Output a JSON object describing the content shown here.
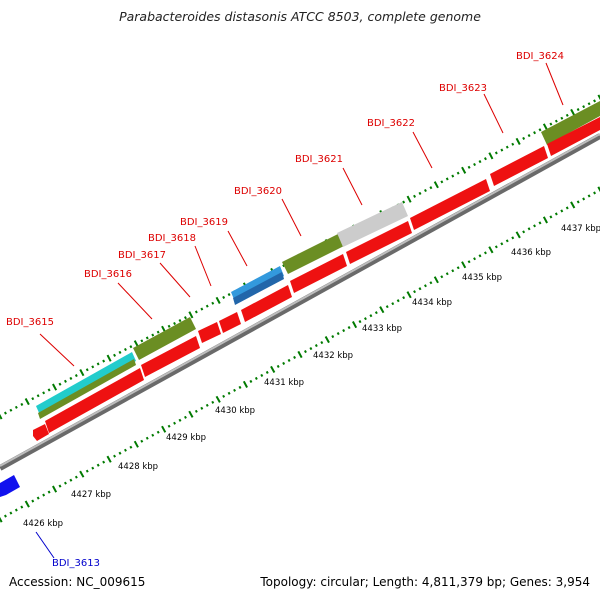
{
  "title": "Parabacteroides distasonis ATCC 8503, complete genome",
  "footer": {
    "accession": "Accession: NC_009615",
    "summary": "Topology: circular; Length: 4,811,379 bp; Genes: 3,954"
  },
  "colors": {
    "cds": "#ee1111",
    "cds_blue": "#1111ee",
    "backbone": "#9a9a9a",
    "tick": "#007a00",
    "feature_olive": "#6b8e23",
    "feature_cyan": "#22cccc",
    "feature_blue": "#3388cc",
    "feature_grey": "#cccccc",
    "label_red": "#dd0000",
    "label_blue": "#0000cc"
  },
  "scale_ticks": [
    "4426 kbp",
    "4427 kbp",
    "4428 kbp",
    "4429 kbp",
    "4430 kbp",
    "4431 kbp",
    "4432 kbp",
    "4433 kbp",
    "4434 kbp",
    "4435 kbp",
    "4436 kbp",
    "4437 kbp"
  ],
  "genes": [
    {
      "label": "BDI_3613",
      "color": "blue"
    },
    {
      "label": "BDI_3615",
      "color": "red"
    },
    {
      "label": "BDI_3616",
      "color": "red"
    },
    {
      "label": "BDI_3617",
      "color": "red"
    },
    {
      "label": "BDI_3618",
      "color": "red"
    },
    {
      "label": "BDI_3619",
      "color": "red"
    },
    {
      "label": "BDI_3620",
      "color": "red"
    },
    {
      "label": "BDI_3621",
      "color": "red"
    },
    {
      "label": "BDI_3622",
      "color": "red"
    },
    {
      "label": "BDI_3623",
      "color": "red"
    },
    {
      "label": "BDI_3624",
      "color": "red"
    }
  ]
}
